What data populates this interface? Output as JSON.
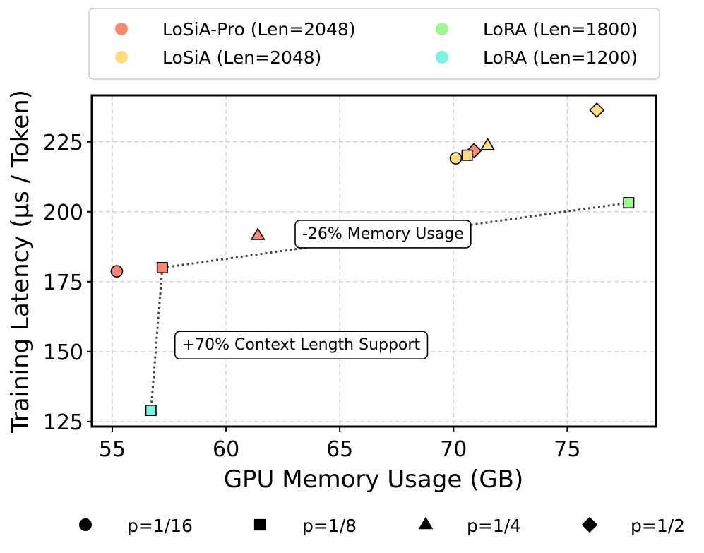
{
  "chart_data": {
    "type": "scatter",
    "xlabel": "GPU Memory Usage (GB)",
    "ylabel": "Training Latency (μs / Token)",
    "xlim": [
      54.1,
      78.9
    ],
    "ylim": [
      123.2,
      241.6
    ],
    "xticks": [
      "55",
      "60",
      "65",
      "70",
      "75"
    ],
    "xtick_values": [
      55,
      60,
      65,
      70,
      75
    ],
    "yticks": [
      "125",
      "150",
      "175",
      "200",
      "225"
    ],
    "ytick_values": [
      125,
      150,
      175,
      200,
      225
    ],
    "grid": true,
    "series": [
      {
        "name": "LoSiA-Pro (Len=2048)",
        "color": "#f98672",
        "points": [
          {
            "x": 55.2,
            "y": 178.7,
            "marker": "circle"
          },
          {
            "x": 57.2,
            "y": 180.0,
            "marker": "square"
          },
          {
            "x": 61.4,
            "y": 191.5,
            "marker": "triangle"
          },
          {
            "x": 70.9,
            "y": 221.8,
            "marker": "diamond"
          }
        ]
      },
      {
        "name": "LoSiA (Len=2048)",
        "color": "#fedd7f",
        "points": [
          {
            "x": 70.1,
            "y": 219.1,
            "marker": "circle"
          },
          {
            "x": 70.6,
            "y": 220.2,
            "marker": "square"
          },
          {
            "x": 71.5,
            "y": 223.6,
            "marker": "triangle"
          },
          {
            "x": 76.3,
            "y": 236.3,
            "marker": "diamond"
          }
        ]
      },
      {
        "name": "LoRA (Len=1800)",
        "color": "#a0f892",
        "points": [
          {
            "x": 77.7,
            "y": 203.2,
            "marker": "square"
          }
        ]
      },
      {
        "name": "LoRA (Len=1200)",
        "color": "#7cf2e1",
        "points": [
          {
            "x": 56.7,
            "y": 129.0,
            "marker": "square"
          }
        ]
      }
    ],
    "connectors": [
      {
        "from": [
          57.2,
          180.0
        ],
        "to": [
          77.7,
          203.2
        ]
      },
      {
        "from": [
          57.2,
          180.0
        ],
        "to": [
          56.7,
          129.0
        ]
      }
    ],
    "annotations": [
      {
        "text": "-26% Memory Usage",
        "x": 66.9,
        "y": 192.0
      },
      {
        "text": "+70% Context Length Support",
        "x": 63.3,
        "y": 152.3
      }
    ],
    "color_legend": [
      "LoSiA-Pro (Len=2048)",
      "LoRA (Len=1800)",
      "LoSiA (Len=2048)",
      "LoRA (Len=1200)"
    ],
    "shape_legend": [
      {
        "label": "p=1/16",
        "marker": "circle"
      },
      {
        "label": "p=1/8",
        "marker": "square"
      },
      {
        "label": "p=1/4",
        "marker": "triangle"
      },
      {
        "label": "p=1/2",
        "marker": "diamond"
      }
    ]
  }
}
